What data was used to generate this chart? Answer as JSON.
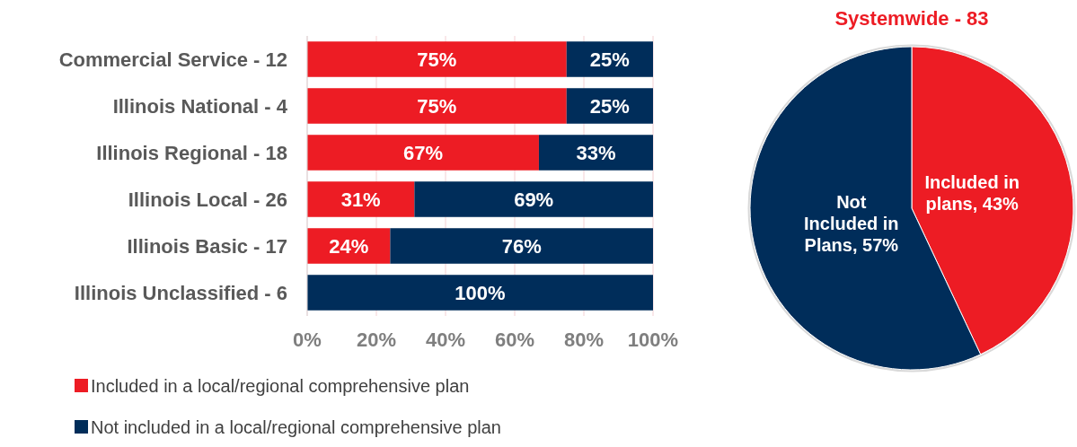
{
  "chart_data": [
    {
      "type": "bar",
      "orientation": "horizontal",
      "stacked": true,
      "categories": [
        "Commercial Service - 12",
        "Illinois National - 4",
        "Illinois Regional - 18",
        "Illinois Local - 26",
        "Illinois Basic - 17",
        "Illinois Unclassified - 6"
      ],
      "series": [
        {
          "name": "Included in a local/regional comprehensive plan",
          "color": "#ed1c24",
          "values": [
            75,
            75,
            67,
            31,
            24,
            0
          ],
          "value_labels": [
            "75%",
            "75%",
            "67%",
            "31%",
            "24%",
            null
          ]
        },
        {
          "name": "Not included in a local/regional comprehensive plan",
          "color": "#002d5a",
          "values": [
            25,
            25,
            33,
            69,
            76,
            100
          ],
          "value_labels": [
            "25%",
            "25%",
            "33%",
            "69%",
            "76%",
            "100%"
          ]
        }
      ],
      "xlim": [
        0,
        100
      ],
      "xticks": [
        {
          "value": 0,
          "label": "0%"
        },
        {
          "value": 20,
          "label": "20%"
        },
        {
          "value": 40,
          "label": "40%"
        },
        {
          "value": 60,
          "label": "60%"
        },
        {
          "value": 80,
          "label": "80%"
        },
        {
          "value": 100,
          "label": "100%"
        }
      ],
      "grid": "x",
      "legend": "bottom"
    },
    {
      "type": "pie",
      "title": "Systemwide - 83",
      "categories": [
        "Included in plans, 43%",
        "Not Included in Plans, 57%"
      ],
      "values": [
        43,
        57
      ],
      "colors": [
        "#ed1c24",
        "#002d5a"
      ]
    }
  ]
}
